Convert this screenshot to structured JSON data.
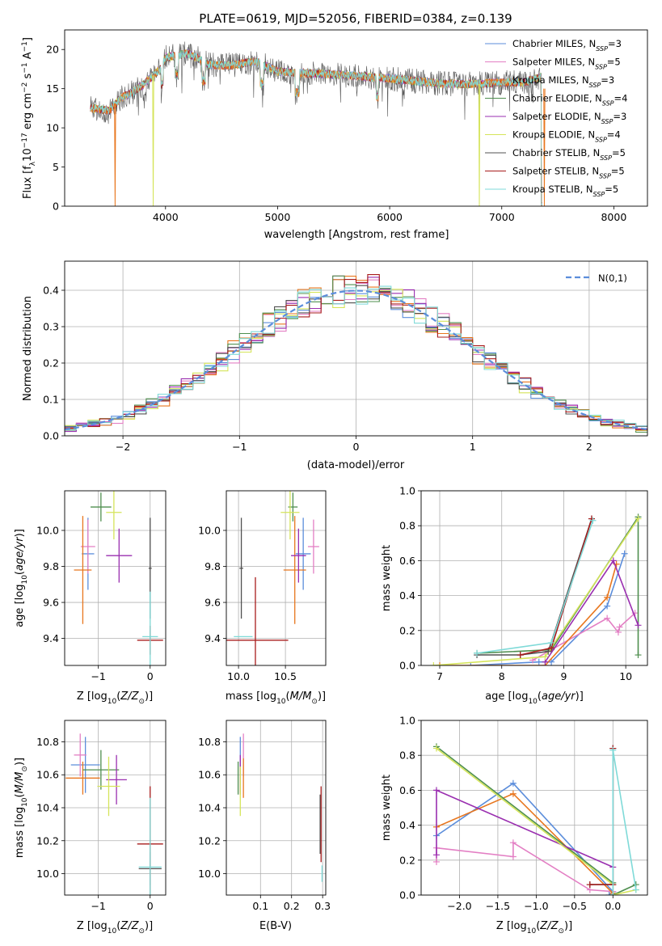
{
  "figure": {
    "title": "PLATE=0619, MJD=52056, FIBERID=0384, z=0.139"
  },
  "chart_data": [
    {
      "id": "spectrum",
      "type": "line",
      "xlabel": "wavelength [Angstrom, rest frame]",
      "ylabel": "Flux [f_λ10^-17 erg cm^-2 s^-1 A^-1]",
      "xlim": [
        3100,
        8300
      ],
      "ylim": [
        0,
        22.5
      ],
      "xticks": [
        4000,
        5000,
        6000,
        7000,
        8000
      ],
      "yticks": [
        0,
        5,
        10,
        15,
        20
      ],
      "grid": false,
      "legend_position": "upper right",
      "series_legend": [
        {
          "name": "Chabrier MILES, N",
          "sub": "SSP",
          "eq": "=3",
          "color": "#5b8ddb"
        },
        {
          "name": "Salpeter MILES, N",
          "sub": "SSP",
          "eq": "=5",
          "color": "#e37fc4"
        },
        {
          "name": "Kroupa MILES, N",
          "sub": "SSP",
          "eq": "=3",
          "color": "#e8761e"
        },
        {
          "name": "Chabrier ELODIE, N",
          "sub": "SSP",
          "eq": "=4",
          "color": "#4f8f4f"
        },
        {
          "name": "Salpeter ELODIE, N",
          "sub": "SSP",
          "eq": "=3",
          "color": "#9a2fb0"
        },
        {
          "name": "Kroupa ELODIE, N",
          "sub": "SSP",
          "eq": "=4",
          "color": "#d5e45a"
        },
        {
          "name": "Chabrier STELIB, N",
          "sub": "SSP",
          "eq": "=5",
          "color": "#505050"
        },
        {
          "name": "Salpeter STELIB, N",
          "sub": "SSP",
          "eq": "=5",
          "color": "#a81c1c"
        },
        {
          "name": "Kroupa STELIB, N",
          "sub": "SSP",
          "eq": "=5",
          "color": "#7fdad8"
        }
      ],
      "continuum": [
        [
          3330,
          12.5
        ],
        [
          3500,
          12.2
        ],
        [
          3600,
          13.8
        ],
        [
          3700,
          14.5
        ],
        [
          3800,
          15.5
        ],
        [
          3950,
          17.5
        ],
        [
          4000,
          19.0
        ],
        [
          4200,
          19.5
        ],
        [
          4400,
          18.0
        ],
        [
          4600,
          18.0
        ],
        [
          4800,
          18.5
        ],
        [
          5000,
          17.2
        ],
        [
          5200,
          17.0
        ],
        [
          5500,
          16.8
        ],
        [
          5800,
          16.5
        ],
        [
          6000,
          16.3
        ],
        [
          6200,
          16.0
        ],
        [
          6500,
          15.6
        ],
        [
          6800,
          15.6
        ],
        [
          7000,
          15.8
        ],
        [
          7200,
          15.8
        ],
        [
          7350,
          16.5
        ]
      ],
      "absorption_features": [
        {
          "x": 3550,
          "depth": 12.0,
          "color": "#e8761e"
        },
        {
          "x": 3890,
          "depth": 16.0,
          "color": "#d5e45a"
        },
        {
          "x": 6800,
          "depth": 15.5,
          "color": "#d5e45a"
        },
        {
          "x": 7380,
          "depth": 16.0,
          "color": "#e8761e"
        }
      ]
    },
    {
      "id": "residuals",
      "type": "histogram",
      "xlabel": "(data-model)/error",
      "ylabel": "Normed distribution",
      "xlim": [
        -2.5,
        2.5
      ],
      "ylim": [
        0,
        0.48
      ],
      "xticks": [
        -2,
        -1,
        0,
        1,
        2
      ],
      "yticks": [
        0.0,
        0.1,
        0.2,
        0.3,
        0.4
      ],
      "grid": true,
      "bin_width": 0.1,
      "reference_label": "N(0,1)",
      "reference_color": "#5b8ddb",
      "legend_position": "upper right"
    },
    {
      "id": "age_vs_Z",
      "type": "errorbar",
      "xlabel": "Z [log10(Z/Z☉)]",
      "ylabel": "age [log10(age/yr)]",
      "xlim": [
        -1.65,
        0.3
      ],
      "ylim": [
        9.25,
        10.22
      ],
      "xticks": [
        -1,
        0
      ],
      "yticks": [
        9.4,
        9.6,
        9.8,
        10.0
      ],
      "points": [
        {
          "color": "#5b8ddb",
          "x": -1.2,
          "y": 9.87,
          "xerr": 0.12,
          "yerr": 0.2
        },
        {
          "color": "#e37fc4",
          "x": -1.2,
          "y": 9.91,
          "xerr": 0.14,
          "yerr": 0.15
        },
        {
          "color": "#e8761e",
          "x": -1.3,
          "y": 9.78,
          "xerr": 0.17,
          "yerr": 0.3
        },
        {
          "color": "#4f8f4f",
          "x": -0.95,
          "y": 10.13,
          "xerr": 0.2,
          "yerr": 0.08
        },
        {
          "color": "#9a2fb0",
          "x": -0.6,
          "y": 9.86,
          "xerr": 0.25,
          "yerr": 0.15
        },
        {
          "color": "#d5e45a",
          "x": -0.7,
          "y": 10.1,
          "xerr": 0.15,
          "yerr": 0.15
        },
        {
          "color": "#505050",
          "x": 0.0,
          "y": 9.79,
          "xerr": 0.03,
          "yerr": 0.28
        },
        {
          "color": "#a81c1c",
          "x": 0.0,
          "y": 9.39,
          "xerr": 0.25,
          "yerr": 0.08
        },
        {
          "color": "#7fdad8",
          "x": 0.0,
          "y": 9.41,
          "xerr": 0.15,
          "yerr": 0.25
        }
      ]
    },
    {
      "id": "age_vs_mass",
      "type": "errorbar",
      "xlabel": "mass [log10(M/M☉)]",
      "ylabel": "",
      "xlim": [
        9.87,
        10.93
      ],
      "ylim": [
        9.25,
        10.22
      ],
      "xticks": [
        10.0,
        10.5
      ],
      "yticks": [
        9.4,
        9.6,
        9.8,
        10.0
      ],
      "points": [
        {
          "color": "#5b8ddb",
          "x": 10.69,
          "y": 9.87,
          "xerr": 0.08,
          "yerr": 0.2
        },
        {
          "color": "#e37fc4",
          "x": 10.8,
          "y": 9.91,
          "xerr": 0.06,
          "yerr": 0.15
        },
        {
          "color": "#e8761e",
          "x": 10.6,
          "y": 9.78,
          "xerr": 0.12,
          "yerr": 0.3
        },
        {
          "color": "#4f8f4f",
          "x": 10.58,
          "y": 10.13,
          "xerr": 0.05,
          "yerr": 0.08
        },
        {
          "color": "#9a2fb0",
          "x": 10.64,
          "y": 9.86,
          "xerr": 0.08,
          "yerr": 0.15
        },
        {
          "color": "#d5e45a",
          "x": 10.55,
          "y": 10.1,
          "xerr": 0.1,
          "yerr": 0.15
        },
        {
          "color": "#505050",
          "x": 10.03,
          "y": 9.79,
          "xerr": 0.02,
          "yerr": 0.28
        },
        {
          "color": "#a81c1c",
          "x": 10.18,
          "y": 9.39,
          "xerr": 0.35,
          "yerr": 0.35
        },
        {
          "color": "#7fdad8",
          "x": 10.05,
          "y": 9.41,
          "xerr": 0.1,
          "yerr": 0.0
        }
      ]
    },
    {
      "id": "mass_weight_vs_age",
      "type": "line",
      "xlabel": "age [log10(age/yr)]",
      "ylabel": "mass weight",
      "xlim": [
        6.7,
        10.35
      ],
      "ylim": [
        0.0,
        1.0
      ],
      "xticks": [
        7,
        8,
        9,
        10
      ],
      "yticks": [
        0.0,
        0.2,
        0.4,
        0.6,
        0.8,
        1.0
      ],
      "grid": true,
      "series": [
        {
          "color": "#5b8ddb",
          "points": [
            [
              7.5,
              0.0
            ],
            [
              8.6,
              0.02
            ],
            [
              8.8,
              0.02
            ],
            [
              9.7,
              0.34
            ],
            [
              9.98,
              0.64
            ]
          ]
        },
        {
          "color": "#e37fc4",
          "points": [
            [
              8.5,
              0.03
            ],
            [
              9.7,
              0.27
            ],
            [
              9.88,
              0.19
            ],
            [
              9.9,
              0.22
            ],
            [
              10.15,
              0.3
            ]
          ]
        },
        {
          "color": "#e8761e",
          "points": [
            [
              7.0,
              0.0
            ],
            [
              8.7,
              0.0
            ],
            [
              9.7,
              0.39
            ],
            [
              9.85,
              0.58
            ]
          ]
        },
        {
          "color": "#4f8f4f",
          "points": [
            [
              7.6,
              0.07
            ],
            [
              8.8,
              0.09
            ],
            [
              10.2,
              0.85
            ],
            [
              10.2,
              0.06
            ]
          ]
        },
        {
          "color": "#9a2fb0",
          "points": [
            [
              8.7,
              0.02
            ],
            [
              9.8,
              0.6
            ],
            [
              10.2,
              0.23
            ]
          ]
        },
        {
          "color": "#d5e45a",
          "points": [
            [
              6.9,
              0.0
            ],
            [
              8.7,
              0.05
            ],
            [
              10.2,
              0.84
            ]
          ]
        },
        {
          "color": "#505050",
          "points": [
            [
              7.6,
              0.06
            ],
            [
              8.3,
              0.06
            ],
            [
              8.75,
              0.08
            ],
            [
              9.45,
              0.84
            ]
          ]
        },
        {
          "color": "#a81c1c",
          "points": [
            [
              8.3,
              0.06
            ],
            [
              8.8,
              0.1
            ],
            [
              9.45,
              0.84
            ]
          ]
        },
        {
          "color": "#7fdad8",
          "points": [
            [
              7.6,
              0.07
            ],
            [
              8.8,
              0.13
            ],
            [
              9.47,
              0.83
            ]
          ]
        }
      ]
    },
    {
      "id": "mass_vs_Z",
      "type": "errorbar",
      "xlabel": "Z [log10(Z/Z☉)]",
      "ylabel": "mass [log10(M/M☉)]",
      "xlim": [
        -1.65,
        0.3
      ],
      "ylim": [
        9.87,
        10.93
      ],
      "xticks": [
        -1,
        0
      ],
      "yticks": [
        10.0,
        10.2,
        10.4,
        10.6,
        10.8
      ],
      "points": [
        {
          "color": "#5b8ddb",
          "x": -1.25,
          "y": 10.66,
          "xerr": 0.28,
          "yerr": 0.17
        },
        {
          "color": "#e37fc4",
          "x": -1.35,
          "y": 10.72,
          "xerr": 0.12,
          "yerr": 0.13
        },
        {
          "color": "#e8761e",
          "x": -1.3,
          "y": 10.58,
          "xerr": 0.33,
          "yerr": 0.1
        },
        {
          "color": "#4f8f4f",
          "x": -0.95,
          "y": 10.63,
          "xerr": 0.35,
          "yerr": 0.12
        },
        {
          "color": "#9a2fb0",
          "x": -0.65,
          "y": 10.57,
          "xerr": 0.2,
          "yerr": 0.15
        },
        {
          "color": "#d5e45a",
          "x": -0.8,
          "y": 10.53,
          "xerr": 0.22,
          "yerr": 0.18
        },
        {
          "color": "#505050",
          "x": 0.0,
          "y": 10.03,
          "xerr": 0.22,
          "yerr": 0.1
        },
        {
          "color": "#a81c1c",
          "x": 0.0,
          "y": 10.18,
          "xerr": 0.25,
          "yerr": 0.35
        },
        {
          "color": "#7fdad8",
          "x": 0.0,
          "y": 10.04,
          "xerr": 0.22,
          "yerr": 0.42
        }
      ]
    },
    {
      "id": "mass_vs_ebv",
      "type": "errorbar",
      "xlabel": "E(B-V)",
      "ylabel": "",
      "xlim": [
        -0.01,
        0.31
      ],
      "ylim": [
        9.87,
        10.93
      ],
      "xticks": [
        0.1,
        0.2,
        0.3
      ],
      "yticks": [
        10.0,
        10.2,
        10.4,
        10.6,
        10.8
      ],
      "points": [
        {
          "color": "#5b8ddb",
          "x": 0.035,
          "y": 10.66,
          "xerr": 0.0,
          "yerr": 0.17
        },
        {
          "color": "#e37fc4",
          "x": 0.045,
          "y": 10.72,
          "xerr": 0.0,
          "yerr": 0.13
        },
        {
          "color": "#e8761e",
          "x": 0.045,
          "y": 10.58,
          "xerr": 0.0,
          "yerr": 0.12
        },
        {
          "color": "#4f8f4f",
          "x": 0.028,
          "y": 10.58,
          "xerr": 0.0,
          "yerr": 0.1
        },
        {
          "color": "#9a2fb0",
          "x": 0.035,
          "y": 10.6,
          "xerr": 0.0,
          "yerr": 0.12
        },
        {
          "color": "#d5e45a",
          "x": 0.035,
          "y": 10.5,
          "xerr": 0.0,
          "yerr": 0.15
        },
        {
          "color": "#505050",
          "x": 0.292,
          "y": 10.3,
          "xerr": 0.0,
          "yerr": 0.18
        },
        {
          "color": "#a81c1c",
          "x": 0.295,
          "y": 10.3,
          "xerr": 0.0,
          "yerr": 0.23
        },
        {
          "color": "#7fdad8",
          "x": 0.298,
          "y": 10.0,
          "xerr": 0.0,
          "yerr": 0.05
        }
      ]
    },
    {
      "id": "mass_weight_vs_Z",
      "type": "line",
      "xlabel": "Z [log10(Z/Z☉)]",
      "ylabel": "mass weight",
      "xlim": [
        -2.5,
        0.45
      ],
      "ylim": [
        0.0,
        1.0
      ],
      "xticks": [
        -2.0,
        -1.5,
        -1.0,
        -0.5,
        0.0
      ],
      "yticks": [
        0.0,
        0.2,
        0.4,
        0.6,
        0.8,
        1.0
      ],
      "grid": true,
      "series": [
        {
          "color": "#5b8ddb",
          "points": [
            [
              -2.3,
              0.34
            ],
            [
              -1.3,
              0.64
            ],
            [
              0.0,
              0.02
            ],
            [
              -0.05,
              0.0
            ]
          ]
        },
        {
          "color": "#e37fc4",
          "points": [
            [
              -2.3,
              0.19
            ],
            [
              -2.3,
              0.27
            ],
            [
              -1.3,
              0.22
            ],
            [
              -1.3,
              0.3
            ],
            [
              -0.3,
              0.03
            ],
            [
              0.0,
              0.02
            ]
          ]
        },
        {
          "color": "#e8761e",
          "points": [
            [
              -2.3,
              0.39
            ],
            [
              -1.3,
              0.58
            ],
            [
              0.0,
              0.01
            ]
          ]
        },
        {
          "color": "#4f8f4f",
          "points": [
            [
              -2.3,
              0.85
            ],
            [
              0.0,
              0.07
            ],
            [
              0.0,
              0.0
            ],
            [
              0.3,
              0.06
            ]
          ]
        },
        {
          "color": "#9a2fb0",
          "points": [
            [
              -2.3,
              0.23
            ],
            [
              -2.3,
              0.6
            ],
            [
              0.0,
              0.16
            ]
          ]
        },
        {
          "color": "#d5e45a",
          "points": [
            [
              -2.3,
              0.84
            ],
            [
              0.0,
              0.06
            ],
            [
              0.0,
              0.0
            ],
            [
              0.3,
              0.03
            ]
          ]
        },
        {
          "color": "#505050",
          "points": [
            [
              -0.3,
              0.06
            ],
            [
              0.0,
              0.06
            ],
            [
              0.0,
              0.84
            ]
          ]
        },
        {
          "color": "#a81c1c",
          "points": [
            [
              -0.3,
              0.06
            ],
            [
              0.0,
              0.06
            ],
            [
              0.0,
              0.84
            ]
          ]
        },
        {
          "color": "#7fdad8",
          "points": [
            [
              0.0,
              0.0
            ],
            [
              0.0,
              0.83
            ],
            [
              0.3,
              0.03
            ]
          ]
        }
      ]
    }
  ]
}
